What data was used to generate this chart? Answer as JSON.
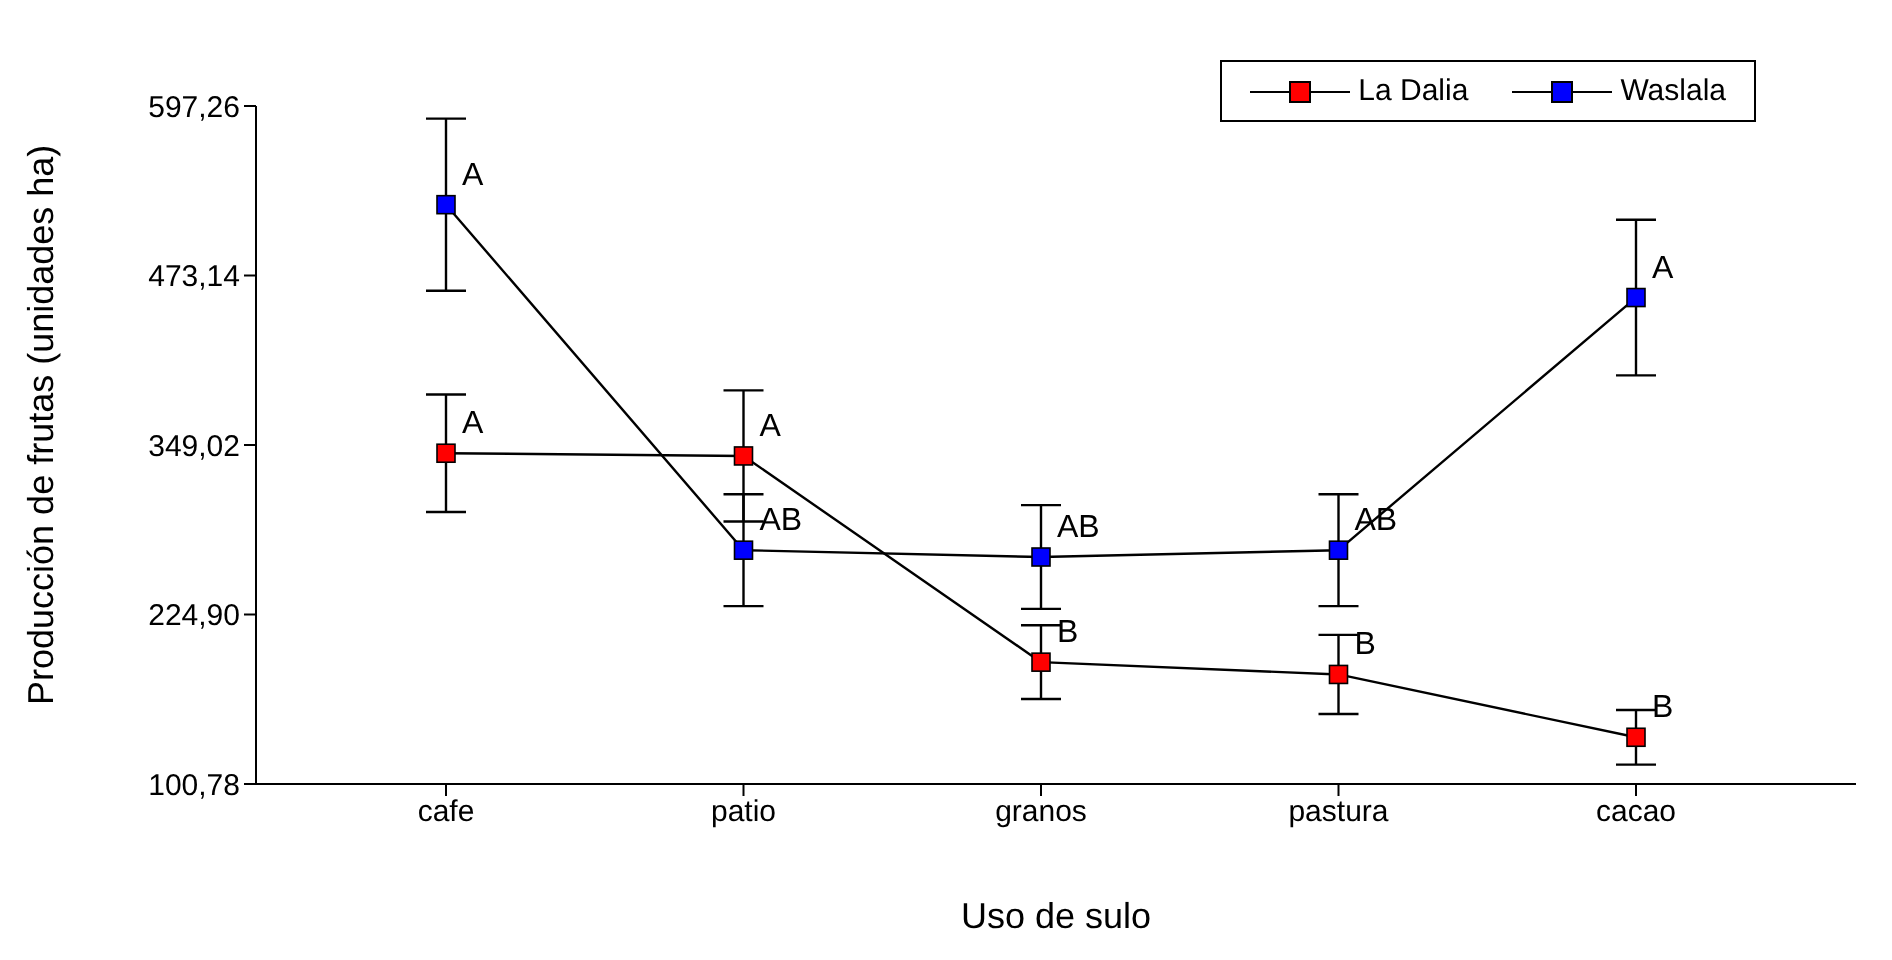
{
  "chart_data": {
    "type": "line",
    "xlabel": "Uso de sulo",
    "ylabel": "Producción de frutas (unidades ha)",
    "categories": [
      "cafe",
      "patio",
      "granos",
      "pastura",
      "cacao"
    ],
    "series": [
      {
        "name": "La Dalia",
        "color": "#ff0000",
        "values": [
          343,
          341,
          190,
          181,
          135
        ],
        "errors": [
          43,
          48,
          27,
          29,
          20
        ]
      },
      {
        "name": "Waslala",
        "color": "#0000ff",
        "values": [
          525,
          272,
          267,
          272,
          457
        ],
        "errors": [
          63,
          41,
          38,
          41,
          57
        ]
      }
    ],
    "ylim": [
      100.78,
      597.26
    ],
    "yticks": [
      {
        "value": 100.78,
        "label": "100,78"
      },
      {
        "value": 224.9,
        "label": "224,90"
      },
      {
        "value": 349.02,
        "label": "349,02"
      },
      {
        "value": 473.14,
        "label": "473,14"
      },
      {
        "value": 597.26,
        "label": "597,26"
      }
    ],
    "annotations": [
      {
        "text": "A",
        "x": "cafe",
        "y": 343
      },
      {
        "text": "A",
        "x": "patio",
        "y": 341
      },
      {
        "text": "B",
        "x": "granos",
        "y": 190
      },
      {
        "text": "B",
        "x": "pastura",
        "y": 181
      },
      {
        "text": "B",
        "x": "cacao",
        "y": 135
      },
      {
        "text": "A",
        "x": "cafe",
        "y": 525
      },
      {
        "text": "AB",
        "x": "patio",
        "y": 272
      },
      {
        "text": "AB",
        "x": "granos",
        "y": 267
      },
      {
        "text": "AB",
        "x": "pastura",
        "y": 272
      },
      {
        "text": "A",
        "x": "cacao",
        "y": 457
      }
    ],
    "marker": "square",
    "grid": false,
    "legend": "top right"
  }
}
